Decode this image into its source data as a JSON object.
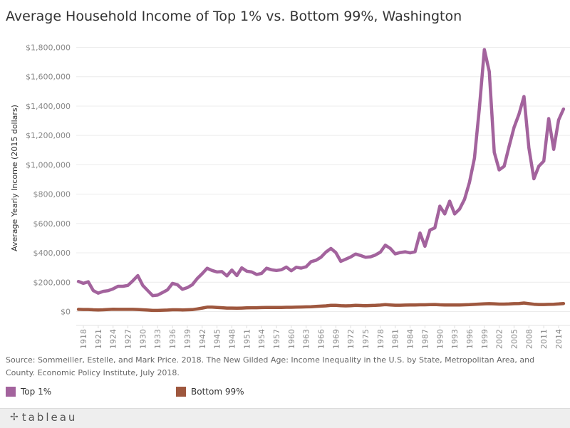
{
  "colors": {
    "top1": "#a3639d",
    "bottom99": "#9e573e",
    "grid": "#ececec",
    "axis_text": "#888888"
  },
  "source_text": "Source: Sommeiller, Estelle, and Mark Price. 2018. The New Gilded Age: Income Inequality in the U.S. by State, Metropolitan Area, and County. Economic Policy Institute, July 2018.",
  "legend": [
    {
      "label": "Top 1%",
      "color": "#a3639d"
    },
    {
      "label": "Bottom 99%",
      "color": "#9e573e"
    }
  ],
  "footer": {
    "logo_text": "tableau",
    "logo_icon": "tableau-logo-icon"
  },
  "chart_data": {
    "type": "line",
    "title": "Average Household Income of Top 1% vs. Bottom 99%, Washington",
    "xlabel": "",
    "ylabel": "Average Yearly Income (2015 dollars)",
    "ylim": [
      0,
      1850000
    ],
    "xlim": [
      1917,
      2015
    ],
    "y_ticks": [
      0,
      200000,
      400000,
      600000,
      800000,
      1000000,
      1200000,
      1400000,
      1600000,
      1800000
    ],
    "y_tick_labels": [
      "$0",
      "$200,000",
      "$400,000",
      "$600,000",
      "$800,000",
      "$1,000,000",
      "$1,200,000",
      "$1,400,000",
      "$1,600,000",
      "$1,800,000"
    ],
    "x_ticks": [
      1918,
      1921,
      1924,
      1927,
      1930,
      1933,
      1936,
      1939,
      1942,
      1945,
      1948,
      1951,
      1954,
      1957,
      1960,
      1963,
      1966,
      1969,
      1972,
      1975,
      1978,
      1981,
      1984,
      1987,
      1990,
      1993,
      1996,
      1999,
      2002,
      2005,
      2008,
      2011,
      2014
    ],
    "grid": true,
    "legend_position": "bottom",
    "x": [
      1917,
      1918,
      1919,
      1920,
      1921,
      1922,
      1923,
      1924,
      1925,
      1926,
      1927,
      1928,
      1929,
      1930,
      1931,
      1932,
      1933,
      1934,
      1935,
      1936,
      1937,
      1938,
      1939,
      1940,
      1941,
      1942,
      1943,
      1944,
      1945,
      1946,
      1947,
      1948,
      1949,
      1950,
      1951,
      1952,
      1953,
      1954,
      1955,
      1956,
      1957,
      1958,
      1959,
      1960,
      1961,
      1962,
      1963,
      1964,
      1965,
      1966,
      1967,
      1968,
      1969,
      1970,
      1971,
      1972,
      1973,
      1974,
      1975,
      1976,
      1977,
      1978,
      1979,
      1980,
      1981,
      1982,
      1983,
      1984,
      1985,
      1986,
      1987,
      1988,
      1989,
      1990,
      1991,
      1992,
      1993,
      1994,
      1995,
      1996,
      1997,
      1998,
      1999,
      2000,
      2001,
      2002,
      2003,
      2004,
      2005,
      2006,
      2007,
      2008,
      2009,
      2010,
      2011,
      2012,
      2013,
      2014,
      2015
    ],
    "series": [
      {
        "name": "Top 1%",
        "color": "#a3639d",
        "values": [
          205000,
          192000,
          203000,
          143000,
          125000,
          138000,
          142000,
          155000,
          172000,
          172000,
          178000,
          210000,
          245000,
          178000,
          143000,
          108000,
          112000,
          130000,
          148000,
          192000,
          183000,
          152000,
          163000,
          183000,
          225000,
          258000,
          295000,
          280000,
          270000,
          272000,
          243000,
          283000,
          245000,
          298000,
          275000,
          270000,
          253000,
          260000,
          295000,
          285000,
          280000,
          285000,
          303000,
          278000,
          302000,
          296000,
          305000,
          340000,
          350000,
          370000,
          405000,
          430000,
          402000,
          342000,
          357000,
          372000,
          392000,
          382000,
          370000,
          373000,
          385000,
          405000,
          452000,
          430000,
          393000,
          402000,
          407000,
          400000,
          407000,
          535000,
          445000,
          555000,
          570000,
          718000,
          665000,
          752000,
          665000,
          698000,
          765000,
          880000,
          1045000,
          1385000,
          1785000,
          1635000,
          1085000,
          965000,
          990000,
          1125000,
          1255000,
          1345000,
          1465000,
          1115000,
          905000,
          990000,
          1025000,
          1315000,
          1105000,
          1305000,
          1380000
        ]
      },
      {
        "name": "Bottom 99%",
        "color": "#9e573e",
        "values": [
          15000,
          14000,
          14000,
          12000,
          11000,
          12000,
          14000,
          16000,
          15000,
          15000,
          15000,
          15000,
          14000,
          12000,
          10000,
          8000,
          8000,
          9000,
          10000,
          12000,
          12000,
          11000,
          12000,
          13000,
          18000,
          24000,
          30000,
          30000,
          28000,
          26000,
          24000,
          24000,
          23000,
          24000,
          25000,
          26000,
          26000,
          27000,
          28000,
          28000,
          28000,
          28000,
          29000,
          29000,
          30000,
          31000,
          32000,
          33000,
          35000,
          37000,
          39000,
          42000,
          42000,
          40000,
          39000,
          40000,
          42000,
          41000,
          40000,
          41000,
          42000,
          44000,
          47000,
          45000,
          43000,
          43000,
          44000,
          45000,
          45000,
          46000,
          46000,
          47000,
          48000,
          46000,
          45000,
          45000,
          45000,
          45000,
          46000,
          47000,
          49000,
          51000,
          53000,
          54000,
          53000,
          51000,
          51000,
          52000,
          54000,
          55000,
          58000,
          54000,
          50000,
          48000,
          48000,
          49000,
          50000,
          52000,
          55000
        ]
      }
    ]
  }
}
